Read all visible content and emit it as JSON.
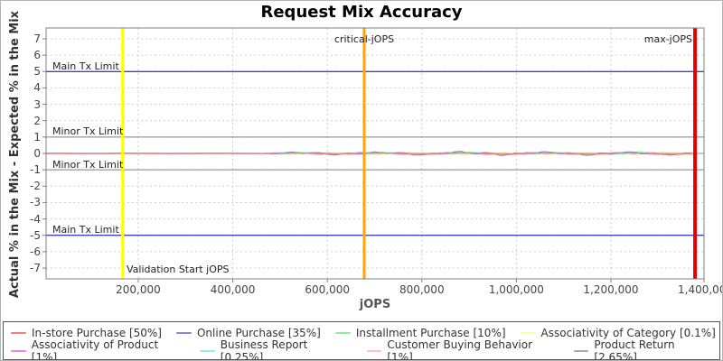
{
  "page": {
    "background": "#ffffff",
    "frame_border_color": "#b4b4b4",
    "legend_border_color": "#555555"
  },
  "chart_data": {
    "type": "line",
    "title": "Request Mix Accuracy",
    "xlabel": "jOPS",
    "ylabel": "Actual % in the Mix - Expected % in the Mix",
    "xlim": [
      5000,
      1397000
    ],
    "ylim": [
      -7.66,
      7.66
    ],
    "x_ticks": [
      200000,
      400000,
      600000,
      800000,
      1000000,
      1200000,
      1400000
    ],
    "x_tick_labels": [
      "200,000",
      "400,000",
      "600,000",
      "800,000",
      "1,000,000",
      "1,200,000",
      "1,400,000"
    ],
    "y_ticks": [
      7,
      6,
      5,
      4,
      3,
      2,
      1,
      0,
      -1,
      -2,
      -3,
      -4,
      -5,
      -6,
      -7
    ],
    "grid": "dashed",
    "grid_color": "#cfcfcf",
    "axis_color": "#808080",
    "legend_position": "bottom",
    "limit_lines": [
      {
        "y": 5,
        "label": "Main Tx Limit",
        "color": "#0000b4"
      },
      {
        "y": 1,
        "label": "Minor Tx Limit",
        "color": "#808080"
      },
      {
        "y": -1,
        "label": "Minor Tx Limit",
        "color": "#808080"
      },
      {
        "y": -5,
        "label": "Main Tx Limit",
        "color": "#0000b4"
      }
    ],
    "markers": {
      "validation_start": {
        "x": 167000,
        "label": "Validation Start jOPS",
        "color": "#ffff00",
        "width": 3
      },
      "critical_jops": {
        "x": 678000,
        "label": "critical-jOPS",
        "color": "#ffa500",
        "width": 3
      },
      "max_jops": {
        "x": 1378000,
        "label": "max-jOPS",
        "color": "#e60000",
        "width": 4
      }
    },
    "series": [
      {
        "name": "In-store Purchase [50%]",
        "color": "#f08080",
        "y_mean": 0,
        "amp": 0.03,
        "x_start": 5000,
        "x_end": 1378000
      },
      {
        "name": "Online Purchase [35%]",
        "color": "#8888cc",
        "y_mean": 0,
        "amp": 0.09,
        "x_start": 5000,
        "x_end": 1378000
      },
      {
        "name": "Installment Purchase [10%]",
        "color": "#90ee90",
        "y_mean": 0,
        "amp": 0.07,
        "x_start": 5000,
        "x_end": 1378000
      },
      {
        "name": "Associativity of Category [0.1%]",
        "color": "#ffff9c",
        "y_mean": 0,
        "amp": 0.04,
        "x_start": 5000,
        "x_end": 1378000
      },
      {
        "name": "Associativity of Product [1%]",
        "color": "#ee82ee",
        "y_mean": 0,
        "amp": 0.05,
        "x_start": 5000,
        "x_end": 1378000
      },
      {
        "name": "Business Report [0.25%]",
        "color": "#8cf0f0",
        "y_mean": 0,
        "amp": 0.05,
        "x_start": 5000,
        "x_end": 1378000
      },
      {
        "name": "Customer Buying Behavior [1%]",
        "color": "#ffc0cb",
        "y_mean": 0,
        "amp": 0.06,
        "x_start": 5000,
        "x_end": 1378000
      },
      {
        "name": "Product Return [2.65%]",
        "color": "#a8a8a8",
        "y_mean": 0,
        "amp": 0.05,
        "x_start": 5000,
        "x_end": 1397000
      }
    ]
  }
}
